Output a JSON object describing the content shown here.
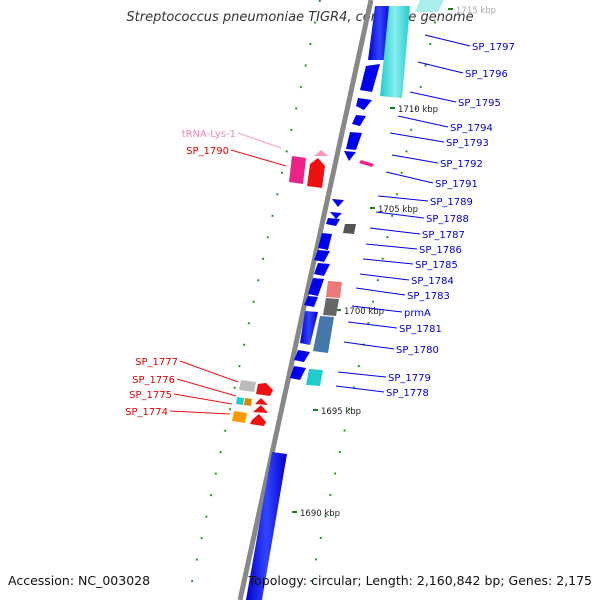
{
  "title": "Streptococcus pneumoniae TIGR4, complete genome",
  "footer": {
    "accession": "Accession: NC_003028",
    "topology": "Topology: circular; Length: 2,160,842 bp; Genes: 2,175"
  },
  "scale_labels": [
    "1715 kbp",
    "1710 kbp",
    "1705 kbp",
    "1700 kbp",
    "1695 kbp",
    "1690 kbp"
  ],
  "right_labels": [
    "SP_1797",
    "SP_1796",
    "SP_1795",
    "SP_1794",
    "SP_1793",
    "SP_1792",
    "SP_1791",
    "SP_1789",
    "SP_1788",
    "SP_1787",
    "SP_1786",
    "SP_1785",
    "SP_1784",
    "SP_1783",
    "prmA",
    "SP_1781",
    "SP_1780",
    "SP_1779",
    "SP_1778"
  ],
  "left_labels": [
    "tRNA-Lys-1",
    "SP_1790",
    "SP_1777",
    "SP_1776",
    "SP_1775",
    "SP_1774"
  ],
  "colors": {
    "blue": "#0000ee",
    "cyan": "#22cccc",
    "red": "#ee1111",
    "magenta": "#ee2288",
    "pink": "#ff99bb",
    "orange": "#ff9900",
    "gray": "#888888",
    "steel": "#4477aa",
    "tick_green": "#118811"
  }
}
